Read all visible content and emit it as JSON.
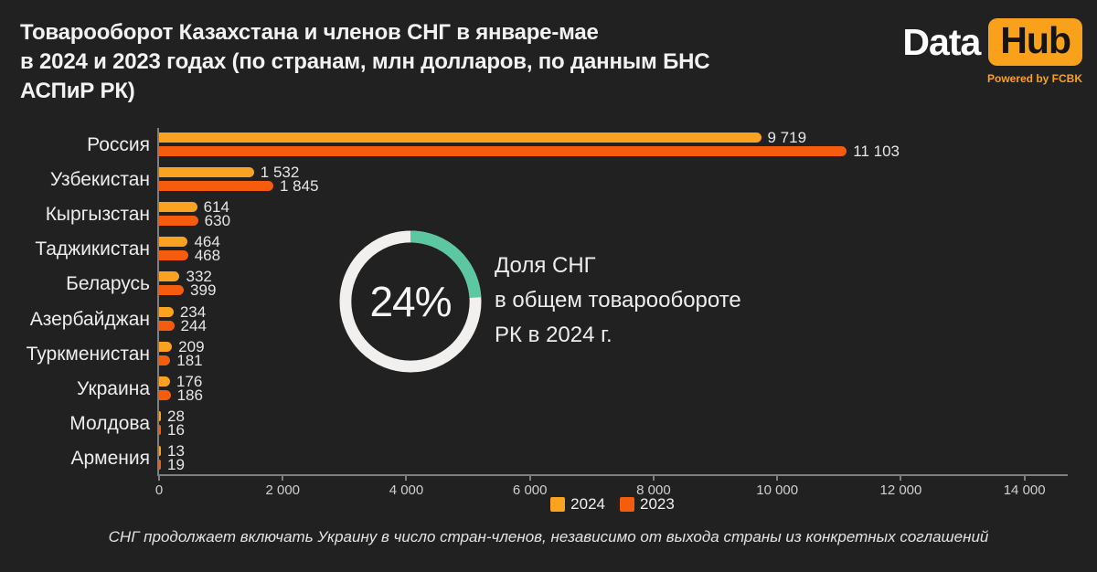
{
  "header": {
    "title_lines": [
      "Товарооборот Казахстана и членов СНГ в январе-мае",
      "в 2024 и 2023 годах (по странам, млн долларов, по данным БНС",
      "АСПиР РК)"
    ]
  },
  "logo": {
    "part1": "Data",
    "part2": "Hub",
    "tagline": "Powered by FCBK"
  },
  "chart_data": {
    "type": "bar",
    "orientation": "horizontal",
    "title": "Товарооборот Казахстана и членов СНГ в январе-мае в 2024 и 2023 годах (по странам, млн долларов, по данным БНС АСПиР РК)",
    "categories": [
      "Россия",
      "Узбекистан",
      "Кыргызстан",
      "Таджикистан",
      "Беларусь",
      "Азербайджан",
      "Туркменистан",
      "Украина",
      "Молдова",
      "Армения"
    ],
    "series": [
      {
        "name": "2024",
        "color": "#fba320",
        "values": [
          9719,
          1532,
          614,
          464,
          332,
          234,
          209,
          176,
          28,
          13
        ],
        "value_labels": [
          "9 719",
          "1 532",
          "614",
          "464",
          "332",
          "234",
          "209",
          "176",
          "28",
          "13"
        ]
      },
      {
        "name": "2023",
        "color": "#f55c0d",
        "values": [
          11103,
          1845,
          630,
          468,
          399,
          244,
          181,
          186,
          16,
          19
        ],
        "value_labels": [
          "11 103",
          "1 845",
          "630",
          "468",
          "399",
          "244",
          "181",
          "186",
          "16",
          "19"
        ]
      }
    ],
    "xlim": [
      0,
      14700
    ],
    "x_ticks": [
      {
        "value": 0,
        "label": "0"
      },
      {
        "value": 2000,
        "label": "2 000"
      },
      {
        "value": 4000,
        "label": "4 000"
      },
      {
        "value": 6000,
        "label": "6 000"
      },
      {
        "value": 8000,
        "label": "8 000"
      },
      {
        "value": 10000,
        "label": "10 000"
      },
      {
        "value": 12000,
        "label": "12 000"
      },
      {
        "value": 14000,
        "label": "14 000"
      }
    ],
    "legend_position": "bottom-center",
    "grid": false
  },
  "donut": {
    "percent": 24,
    "center_label": "24%",
    "caption_lines": [
      "Доля СНГ",
      "в общем товарообороте",
      "РК в 2024 г."
    ],
    "arc_color": "#5bc8a2",
    "track_color": "#f1f0ee"
  },
  "footnote": "СНГ продолжает включать Украину в число стран-членов, независимо от выхода страны из конкретных соглашений",
  "colors": {
    "background": "#212121",
    "axis": "#7e7e7e",
    "bar_2024": "#fba320",
    "bar_2023": "#f55c0d",
    "logo_orange": "#f9a11b",
    "donut_green": "#5bc8a2"
  }
}
